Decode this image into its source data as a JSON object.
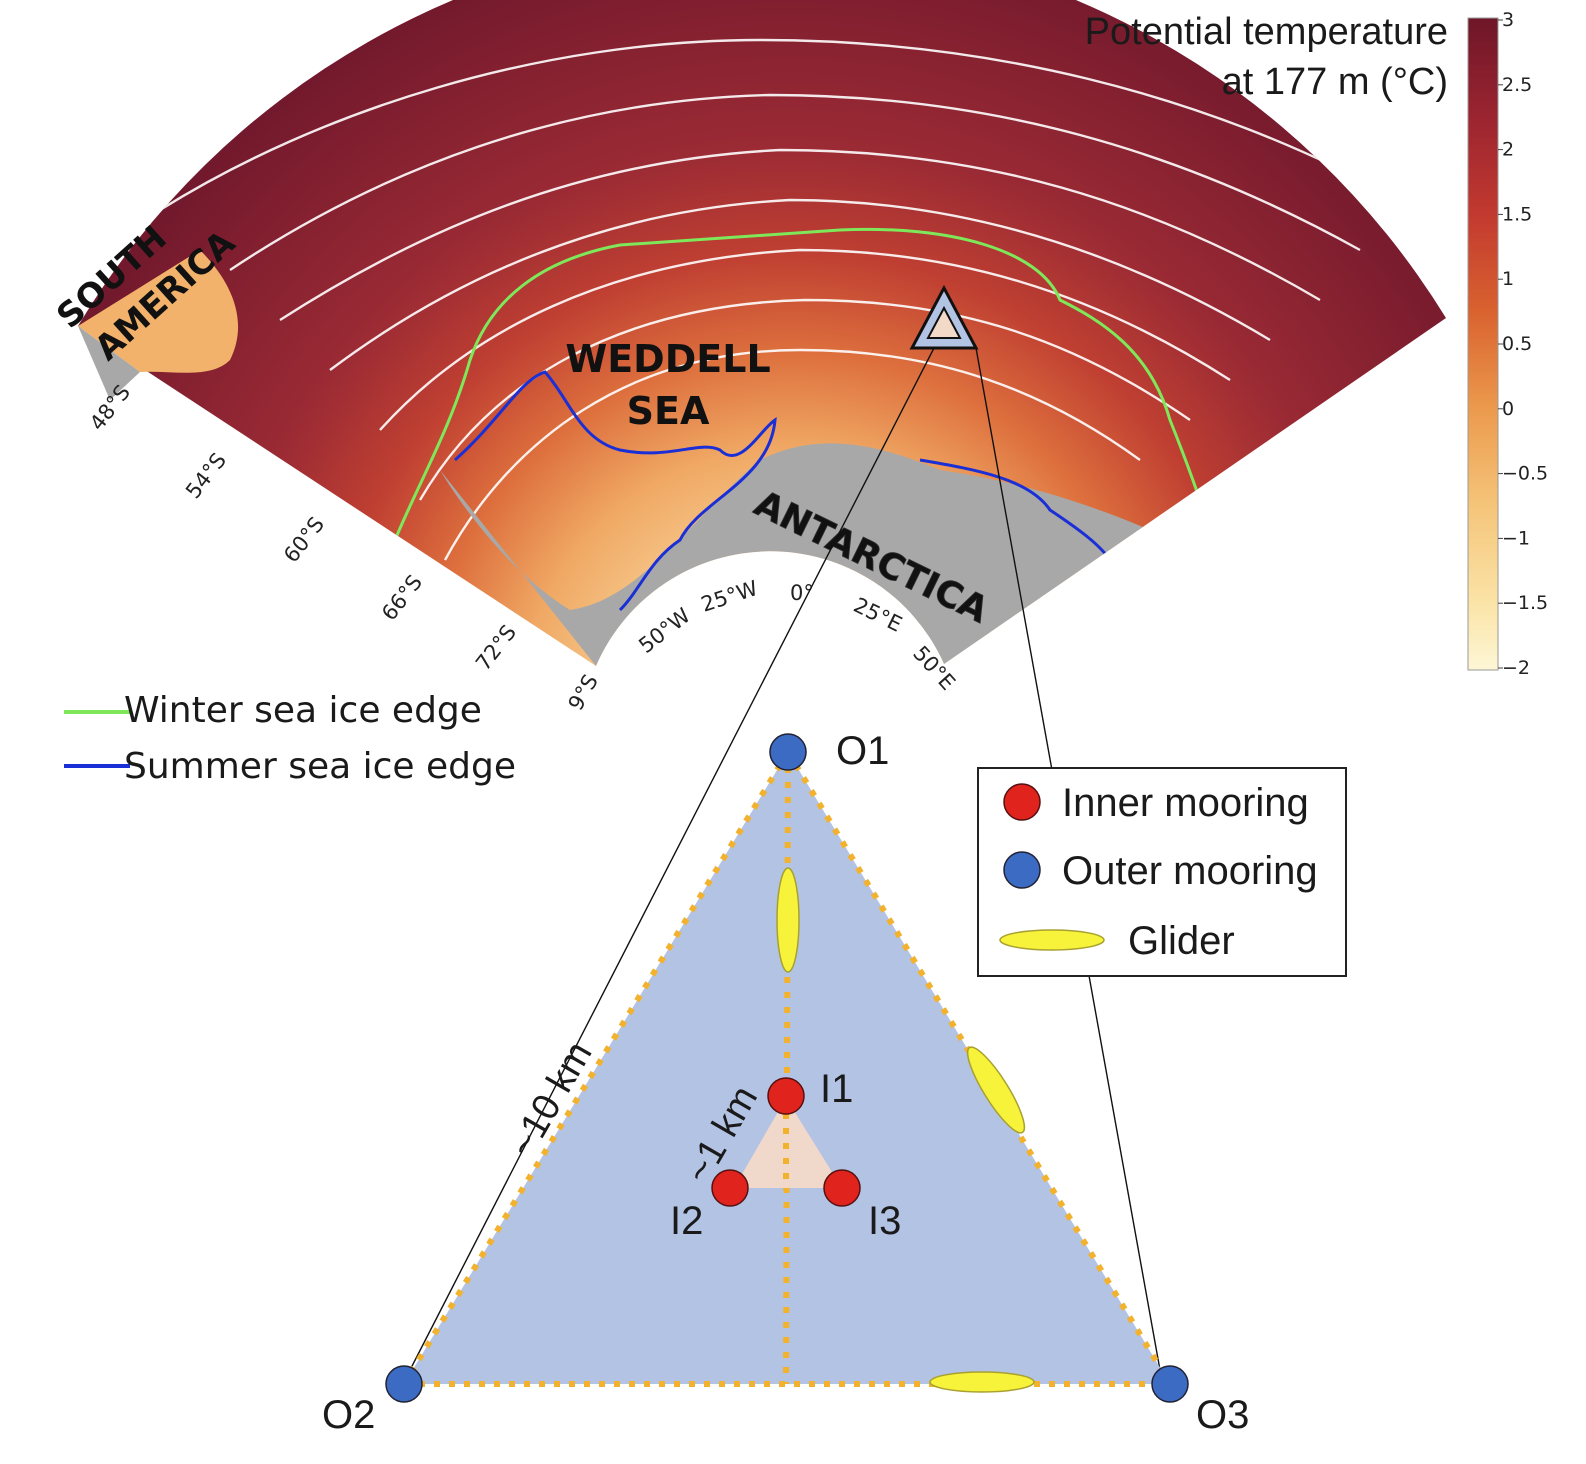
{
  "map": {
    "region_labels": {
      "south_america": [
        "SOUTH",
        "AMERICA"
      ],
      "weddell_sea": [
        "WEDDELL",
        "SEA"
      ],
      "antarctica": "ANTARCTICA"
    },
    "lat_ticks": [
      "48°S",
      "54°S",
      "60°S",
      "66°S",
      "72°S"
    ],
    "lon_ticks": [
      "9°S",
      "50°W",
      "25°W",
      "0°",
      "25°E",
      "50°E"
    ],
    "colors": {
      "warm_ocean": "#7a1f30",
      "mid_ocean": "#c8462f",
      "cool_ocean": "#f0a864",
      "cold_ocean": "#fbe3b4",
      "land": "#a8a8a8",
      "south_america_land": "#f2b26b",
      "contour": "#ffffff"
    }
  },
  "colorbar": {
    "title_lines": [
      "Potential temperature",
      "at 177 m (°C)"
    ],
    "ticks": [
      "3",
      "2.5",
      "2",
      "1.5",
      "1",
      "0.5",
      "0",
      "−0.5",
      "−1",
      "−1.5",
      "−2"
    ],
    "range": [
      -2,
      3
    ]
  },
  "ice_legend": {
    "winter": {
      "label": "Winter sea ice edge",
      "color": "#7ee85a"
    },
    "summer": {
      "label": "Summer sea ice edge",
      "color": "#1b2fd6"
    }
  },
  "array": {
    "outer_moorings": [
      "O1",
      "O2",
      "O3"
    ],
    "inner_moorings": [
      "I1",
      "I2",
      "I3"
    ],
    "outer_scale": "~10 km",
    "inner_scale": "~1 km",
    "colors": {
      "outer_triangle": "#b3c3e4",
      "inner_triangle": "#f3d9c8",
      "dotted_track": "#f2b22e",
      "outer_marker": "#3c6bc4",
      "inner_marker": "#e0231c",
      "glider": "#f7f23a"
    }
  },
  "mooring_legend": {
    "inner": "Inner mooring",
    "outer": "Outer mooring",
    "glider": "Glider"
  }
}
